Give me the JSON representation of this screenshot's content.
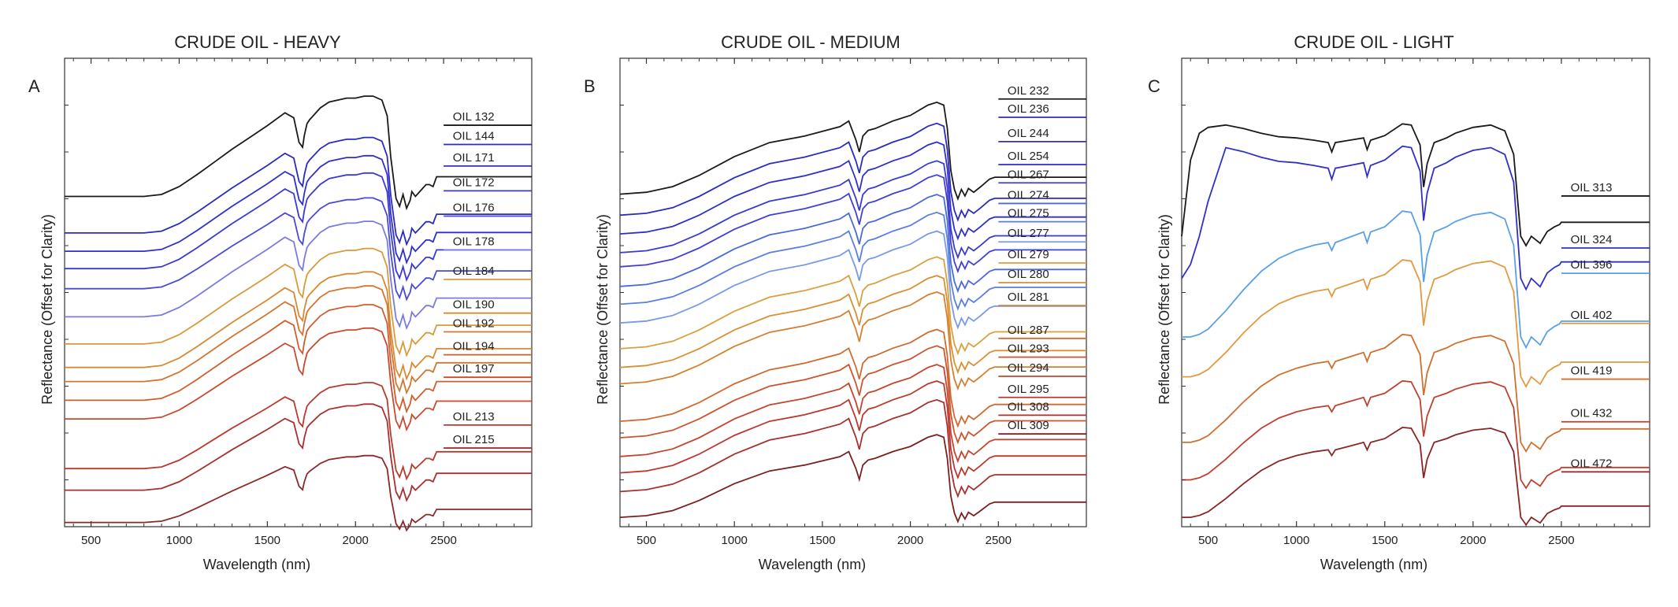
{
  "chart_data": [
    {
      "type": "line",
      "panel_letter": "A",
      "title": "CRUDE OIL - HEAVY",
      "xlabel": "Wavelength (nm)",
      "ylabel": "Reflectance (Offset for Clarity)",
      "xlim": [
        350,
        3000
      ],
      "ylim": [
        0,
        100
      ],
      "xticks": [
        500,
        1000,
        1500,
        2000,
        2500
      ],
      "xtick_labels": [
        "500",
        "1000",
        "1500",
        "2000",
        "2500"
      ],
      "grid": false,
      "legend_position": "right, inline labels",
      "x": [
        350,
        450,
        600,
        800,
        900,
        1000,
        1100,
        1200,
        1300,
        1400,
        1500,
        1600,
        1650,
        1680,
        1700,
        1710,
        1725,
        1740,
        1760,
        1800,
        1850,
        1900,
        1950,
        2000,
        2050,
        2100,
        2150,
        2180,
        2200,
        2230,
        2250,
        2270,
        2290,
        2310,
        2320,
        2340,
        2360,
        2380,
        2400,
        2420,
        2440,
        2460,
        2490,
        2500
      ],
      "series": [
        {
          "name": "OIL 132",
          "color": "#1a1a1a",
          "baseline": 70.5,
          "scale": 21.0,
          "label_y": 85.7
        },
        {
          "name": "OIL 144",
          "color": "#2b2bbf",
          "baseline": 62.7,
          "scale": 20.0,
          "label_y": 81.6
        },
        {
          "name": "OIL 171",
          "color": "#3030c8",
          "baseline": 58.8,
          "scale": 20.0,
          "label_y": 77.0
        },
        {
          "name": "OIL 172",
          "color": "#3a3ad2",
          "baseline": 55.1,
          "scale": 20.0,
          "label_y": 71.7
        },
        {
          "name": "OIL 176",
          "color": "#4a4ad8",
          "baseline": 50.8,
          "scale": 19.0,
          "label_y": 66.3
        },
        {
          "name": "OIL 178",
          "color": "#7a7ae0",
          "baseline": 44.8,
          "scale": 20.0,
          "label_y": 59.1
        },
        {
          "name": "OIL 184",
          "color": "#d99a3a",
          "baseline": 39.0,
          "scale": 20.0,
          "label_y": 52.8
        },
        {
          "name": "OIL 190",
          "color": "#d78a30",
          "baseline": 34.0,
          "scale": 20.0,
          "label_y": 45.6
        },
        {
          "name": "OIL 192",
          "color": "#d47530",
          "baseline": 31.0,
          "scale": 20.0,
          "label_y": 41.6
        },
        {
          "name": "OIL 194",
          "color": "#cf5e30",
          "baseline": 27.0,
          "scale": 20.0,
          "label_y": 36.7
        },
        {
          "name": "OIL 197",
          "color": "#c84a30",
          "baseline": 23.0,
          "scale": 19.0,
          "label_y": 31.9
        },
        {
          "name": "OIL 213",
          "color": "#b83a30",
          "baseline": 12.4,
          "scale": 18.0,
          "label_y": 21.7
        },
        {
          "name": "OIL 215",
          "color": "#a83030",
          "baseline": 7.8,
          "scale": 18.0,
          "label_y": 16.8
        },
        {
          "name": "",
          "color": "#8a2a2a",
          "baseline": 0.9,
          "scale": 14.0,
          "label_y": null
        }
      ]
    },
    {
      "type": "line",
      "panel_letter": "B",
      "title": "CRUDE OIL - MEDIUM",
      "xlabel": "Wavelength (nm)",
      "ylabel": "Reflectance (Offset for Clarity)",
      "xlim": [
        350,
        3000
      ],
      "ylim": [
        0,
        100
      ],
      "xticks": [
        500,
        1000,
        1500,
        2000,
        2500
      ],
      "xtick_labels": [
        "500",
        "1000",
        "1500",
        "2000",
        "2500"
      ],
      "grid": false,
      "legend_position": "right, inline labels",
      "x": [
        350,
        500,
        650,
        800,
        1000,
        1200,
        1400,
        1600,
        1650,
        1690,
        1710,
        1730,
        1760,
        1800,
        1900,
        2000,
        2100,
        2150,
        2190,
        2210,
        2230,
        2250,
        2270,
        2290,
        2310,
        2330,
        2360,
        2400,
        2450,
        2480
      ],
      "series": [
        {
          "name": "OIL 232",
          "color": "#1a1a1a",
          "baseline": 71.0,
          "scale": 20.0,
          "label_y": 91.3
        },
        {
          "name": "OIL 236",
          "color": "#2b2bbf",
          "baseline": 66.5,
          "scale": 20.0,
          "label_y": 87.4
        },
        {
          "name": "OIL 244",
          "color": "#3030c8",
          "baseline": 62.5,
          "scale": 20.0,
          "label_y": 82.2
        },
        {
          "name": "OIL 254",
          "color": "#3a3ad2",
          "baseline": 58.5,
          "scale": 20.0,
          "label_y": 77.3
        },
        {
          "name": "OIL 267",
          "color": "#4040d8",
          "baseline": 55.5,
          "scale": 20.0,
          "label_y": 73.4
        },
        {
          "name": "OIL 274",
          "color": "#4a6ad8",
          "baseline": 51.3,
          "scale": 20.0,
          "label_y": 69.0
        },
        {
          "name": "OIL 275",
          "color": "#5a7fe0",
          "baseline": 47.5,
          "scale": 20.0,
          "label_y": 65.1
        },
        {
          "name": "OIL 277",
          "color": "#7a9ae6",
          "baseline": 43.5,
          "scale": 20.0,
          "label_y": 60.8
        },
        {
          "name": "OIL 279",
          "color": "#d9a040",
          "baseline": 38.0,
          "scale": 20.0,
          "label_y": 56.3
        },
        {
          "name": "OIL 280",
          "color": "#d89035",
          "baseline": 34.0,
          "scale": 20.0,
          "label_y": 52.1
        },
        {
          "name": "OIL 281",
          "color": "#d58030",
          "baseline": 30.5,
          "scale": 20.0,
          "label_y": 47.2
        },
        {
          "name": "OIL 287",
          "color": "#d06a30",
          "baseline": 22.5,
          "scale": 20.0,
          "label_y": 40.2
        },
        {
          "name": "OIL 293",
          "color": "#cc5530",
          "baseline": 19.0,
          "scale": 20.0,
          "label_y": 36.2
        },
        {
          "name": "OIL 294",
          "color": "#c44530",
          "baseline": 15.0,
          "scale": 20.0,
          "label_y": 32.1
        },
        {
          "name": "OIL 295",
          "color": "#bb3a30",
          "baseline": 11.5,
          "scale": 20.0,
          "label_y": 27.6
        },
        {
          "name": "OIL 308",
          "color": "#a83030",
          "baseline": 7.5,
          "scale": 20.0,
          "label_y": 23.8
        },
        {
          "name": "OIL 309",
          "color": "#7a2020",
          "baseline": 2.0,
          "scale": 18.0,
          "label_y": 19.8
        }
      ]
    },
    {
      "type": "line",
      "panel_letter": "C",
      "title": "CRUDE OIL - LIGHT",
      "xlabel": "Wavelength (nm)",
      "ylabel": "Reflectance (Offset for Clarity)",
      "xlim": [
        350,
        3000
      ],
      "ylim": [
        0,
        100
      ],
      "xticks": [
        500,
        1000,
        1500,
        2000,
        2500
      ],
      "xtick_labels": [
        "500",
        "1000",
        "1500",
        "2000",
        "2500"
      ],
      "grid": false,
      "legend_position": "right, inline labels",
      "x": [
        350,
        400,
        450,
        500,
        600,
        700,
        800,
        900,
        1000,
        1100,
        1180,
        1200,
        1220,
        1300,
        1380,
        1400,
        1420,
        1500,
        1600,
        1650,
        1700,
        1720,
        1740,
        1780,
        1850,
        1900,
        2000,
        2100,
        2180,
        2230,
        2270,
        2300,
        2330,
        2380,
        2420,
        2460,
        2490,
        2500
      ],
      "series": [
        {
          "name": "OIL 313",
          "color": "#1a1a1a",
          "baseline": 62.0,
          "scale": 25.0,
          "label_y": 70.6
        },
        {
          "name": "OIL 324",
          "color": "#3030c8",
          "baseline": 53.0,
          "scale": 30.0,
          "label_y": 59.5
        },
        {
          "name": "OIL 396",
          "color": "#5aa0e6",
          "baseline": 40.5,
          "scale": 28.0,
          "label_y": 54.1
        },
        {
          "name": "OIL 402",
          "color": "#e09a40",
          "baseline": 32.0,
          "scale": 26.0,
          "label_y": 43.4
        },
        {
          "name": "OIL 419",
          "color": "#d07030",
          "baseline": 18.0,
          "scale": 24.0,
          "label_y": 31.5
        },
        {
          "name": "OIL 432",
          "color": "#c04030",
          "baseline": 10.0,
          "scale": 22.0,
          "label_y": 22.4
        },
        {
          "name": "OIL 472",
          "color": "#8a2525",
          "baseline": 2.0,
          "scale": 20.0,
          "label_y": 11.7
        }
      ]
    }
  ]
}
